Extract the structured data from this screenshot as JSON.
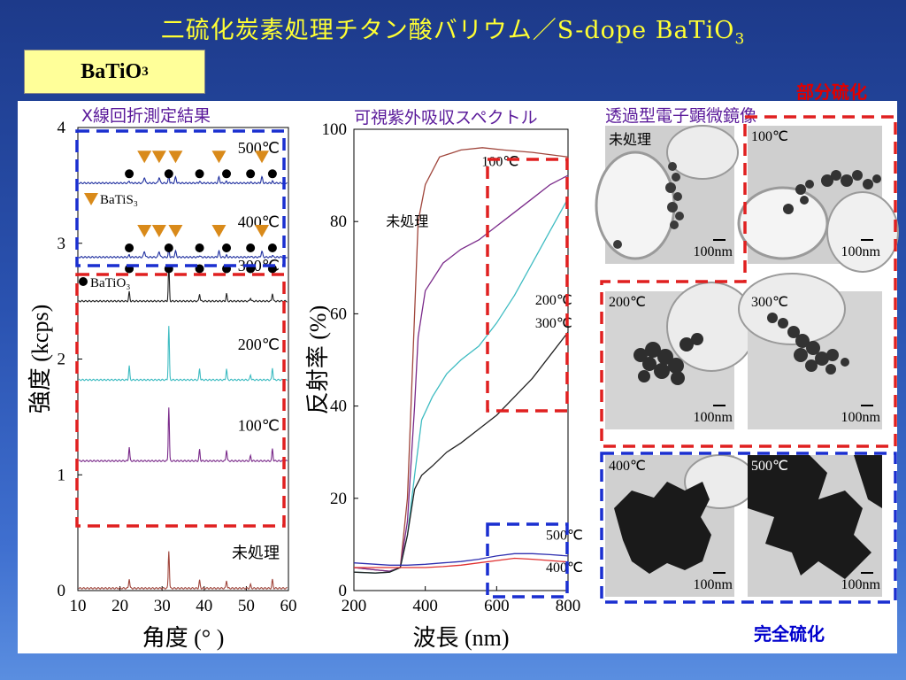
{
  "slide": {
    "title_main": "二硫化炭素処理チタン酸バリウム／S-dope BaTiO",
    "title_sub": "3",
    "tag_main": "BaTiO",
    "tag_sub": "3"
  },
  "headings": {
    "xrd": "X線回折測定結果",
    "spectrum": "可視紫外吸収スペクトル",
    "tem": "透過型電子顕微鏡像",
    "partial": "部分硫化",
    "complete": "完全硫化"
  },
  "colors": {
    "red_box": "#e02020",
    "blue_box": "#1a2fd0",
    "marker_tri": "#d98a1a",
    "marker_dot": "#000000"
  },
  "chart_data": [
    {
      "type": "line",
      "title": "X線回折測定結果",
      "xlabel": "角度 (°  )",
      "ylabel": "強度 (kcps)",
      "xlim": [
        10,
        60
      ],
      "ylim": [
        0,
        4
      ],
      "xticks": [
        "10",
        "20",
        "30",
        "40",
        "50",
        "60"
      ],
      "yticks": [
        "0",
        "1",
        "2",
        "3",
        "4"
      ],
      "legend": [
        "BaTiS3",
        "BaTiO3"
      ],
      "batio3_peaks": [
        22.2,
        31.6,
        38.9,
        45.3,
        51.0,
        56.2
      ],
      "batis3_peaks": [
        25.8,
        29.3,
        33.2,
        43.5,
        53.7
      ],
      "series": [
        {
          "name": "未処理",
          "label": "未処理",
          "color": "#a0463c",
          "offset": 0.0
        },
        {
          "name": "100℃",
          "label": "100℃",
          "color": "#7a2a8a",
          "offset": 1.1
        },
        {
          "name": "200℃",
          "label": "200℃",
          "color": "#3fbcc2",
          "offset": 1.8
        },
        {
          "name": "300℃",
          "label": "300℃",
          "color": "#222222",
          "offset": 2.48
        },
        {
          "name": "400℃",
          "label": "400℃",
          "color": "#2030a0",
          "offset": 2.86
        },
        {
          "name": "500℃",
          "label": "500℃",
          "color": "#2030a0",
          "offset": 3.5
        }
      ]
    },
    {
      "type": "line",
      "title": "可視紫外吸収スペクトル",
      "xlabel": "波長 (nm)",
      "ylabel": "反射率 (%)",
      "xlim": [
        200,
        800
      ],
      "ylim": [
        0,
        100
      ],
      "xticks": [
        "200",
        "400",
        "600",
        "800"
      ],
      "yticks": [
        "0",
        "20",
        "40",
        "60",
        "80",
        "100"
      ],
      "series": [
        {
          "name": "未処理",
          "color": "#a0463c",
          "x": [
            200,
            260,
            300,
            330,
            350,
            370,
            380,
            400,
            440,
            500,
            560,
            620,
            700,
            800
          ],
          "y": [
            5,
            4.5,
            4.2,
            5,
            20,
            60,
            80,
            88,
            94,
            95.5,
            96,
            95.5,
            95,
            94
          ]
        },
        {
          "name": "100℃",
          "color": "#7a2a8a",
          "x": [
            200,
            260,
            300,
            330,
            350,
            370,
            380,
            400,
            450,
            500,
            550,
            600,
            650,
            700,
            750,
            800
          ],
          "y": [
            5,
            4.5,
            4.2,
            5,
            15,
            40,
            55,
            65,
            71,
            74,
            76,
            79,
            82,
            85,
            88,
            90
          ]
        },
        {
          "name": "200℃",
          "color": "#3fbcc2",
          "x": [
            200,
            260,
            300,
            330,
            350,
            370,
            390,
            420,
            460,
            500,
            550,
            600,
            650,
            700,
            750,
            800
          ],
          "y": [
            4,
            3.8,
            4,
            5,
            12,
            25,
            37,
            42,
            47,
            50,
            53,
            58,
            64,
            71,
            78,
            85
          ]
        },
        {
          "name": "300℃",
          "color": "#222222",
          "x": [
            200,
            260,
            300,
            330,
            350,
            370,
            390,
            420,
            460,
            500,
            550,
            600,
            650,
            700,
            750,
            800
          ],
          "y": [
            4,
            3.8,
            4,
            5,
            12,
            22,
            25,
            27,
            30,
            32,
            35,
            38,
            42,
            46,
            51,
            56
          ]
        },
        {
          "name": "400℃",
          "color": "#e03030",
          "x": [
            200,
            300,
            350,
            400,
            450,
            500,
            550,
            600,
            650,
            700,
            750,
            800
          ],
          "y": [
            5,
            5,
            5,
            5,
            5.2,
            5.5,
            6,
            6.5,
            7,
            6.8,
            6.5,
            6.2
          ]
        },
        {
          "name": "500℃",
          "color": "#3030b0",
          "x": [
            200,
            300,
            350,
            400,
            450,
            500,
            550,
            600,
            650,
            700,
            750,
            800
          ],
          "y": [
            6,
            5.5,
            5.5,
            5.7,
            6,
            6.3,
            6.8,
            7.5,
            8,
            8,
            7.8,
            7.5
          ]
        }
      ],
      "labels": [
        "未処理",
        "100℃",
        "200℃",
        "300℃",
        "500℃",
        "400℃"
      ]
    }
  ],
  "tem": {
    "images": [
      {
        "label": "未処理",
        "scale": "100nm"
      },
      {
        "label": "100℃",
        "scale": "100nm"
      },
      {
        "label": "200℃",
        "scale": "100nm"
      },
      {
        "label": "300℃",
        "scale": "100nm"
      },
      {
        "label": "400℃",
        "scale": "100nm"
      },
      {
        "label": "500℃",
        "scale": "100nm"
      }
    ]
  }
}
